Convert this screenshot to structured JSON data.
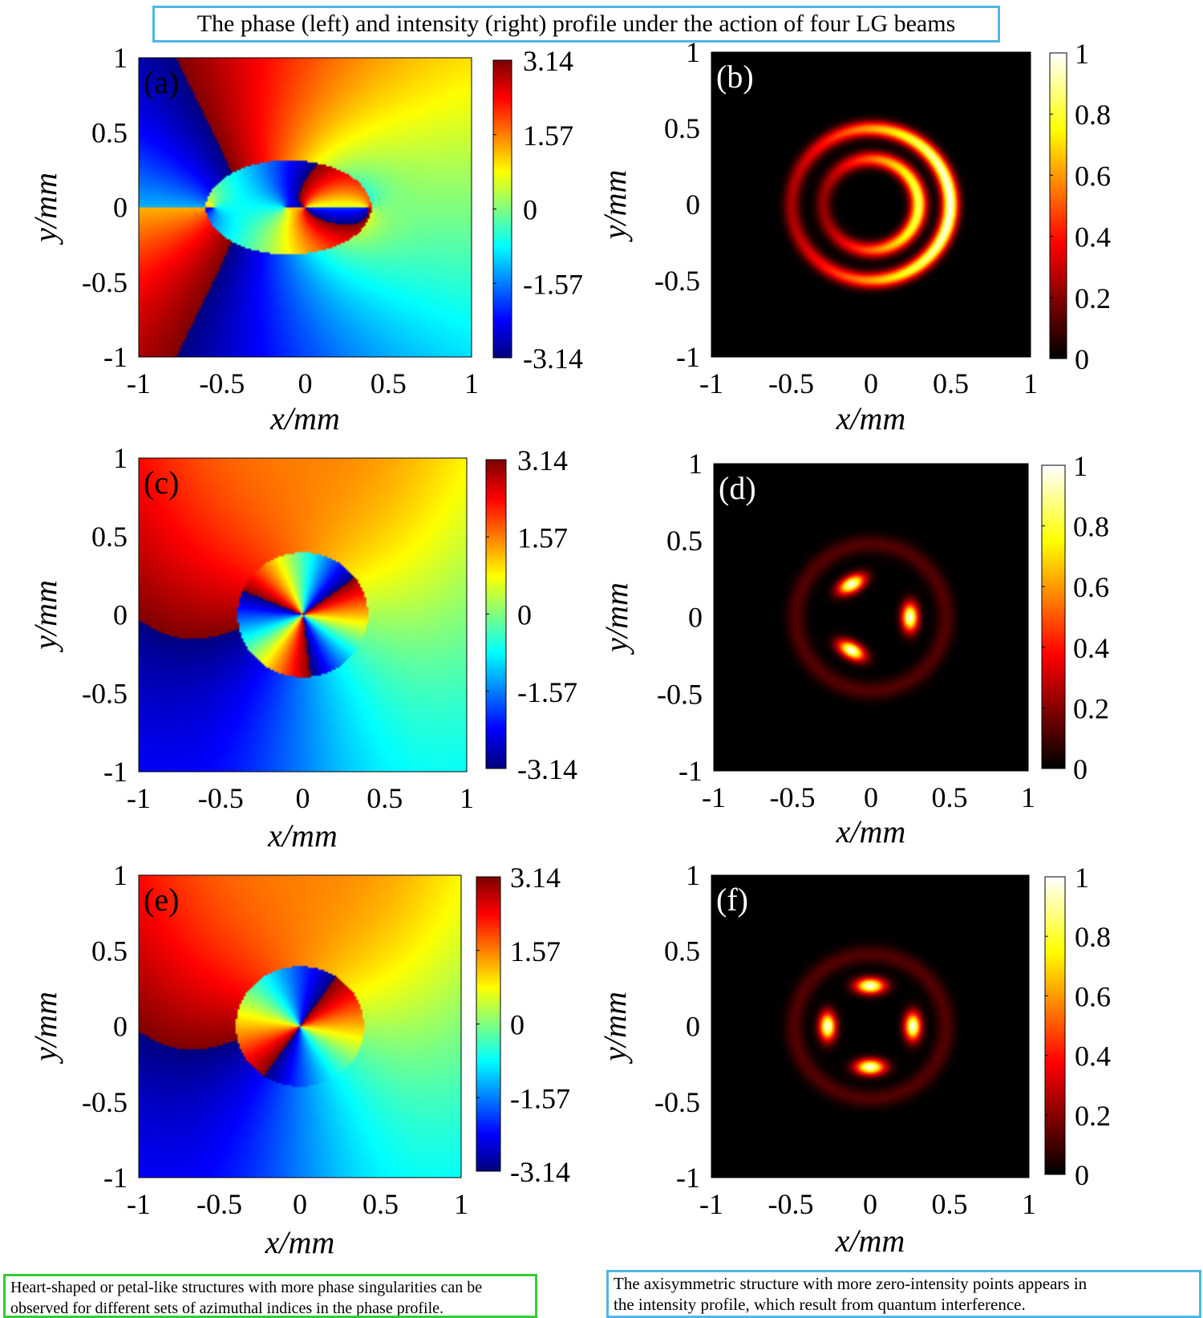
{
  "title": "The phase (left) and intensity (right) profile under the action of four LG beams",
  "notes": {
    "left": [
      "Heart-shaped or petal-like structures with more phase singularities can be",
      "observed for different sets of azimuthal indices in the phase profile."
    ],
    "right": [
      "The axisymmetric structure with more zero-intensity points appears in",
      "the intensity profile, which result from quantum interference."
    ]
  },
  "colors": {
    "title_border": "#4fb6e6",
    "left_note_border": "#33cc33",
    "right_note_border": "#4fb6e6",
    "phase_colormap": "jet",
    "intensity_colormap": "hot",
    "intensity_background": "#000000"
  },
  "chart_data": [
    {
      "panel": "(a)",
      "type": "heatmap",
      "quantity": "phase",
      "xlabel": "x/mm",
      "ylabel": "y/mm",
      "xlim": [
        -1,
        1
      ],
      "ylim": [
        -1,
        1
      ],
      "xticks": [
        "-1",
        "-0.5",
        "0",
        "0.5",
        "1"
      ],
      "yticks": [
        "1",
        "0.5",
        "0",
        "-0.5",
        "-1"
      ],
      "colorbar": {
        "range": [
          -3.14,
          3.14
        ],
        "ticks": [
          "3.14",
          "1.57",
          "0",
          "-1.57",
          "-3.14"
        ]
      },
      "structure": "heart-shaped phase structure with vortex at origin",
      "vortices": [
        {
          "x": -0.12,
          "y": 0.0,
          "charge": 1
        },
        {
          "x": -0.55,
          "y": 0.0,
          "charge": 1
        },
        {
          "x": 0.38,
          "y": 0.0,
          "charge": -1
        }
      ],
      "background_singularity": {
        "x": 0.0,
        "y": 0.0
      }
    },
    {
      "panel": "(b)",
      "type": "heatmap",
      "quantity": "intensity",
      "xlabel": "x/mm",
      "ylabel": "y/mm",
      "xlim": [
        -1,
        1
      ],
      "ylim": [
        -1,
        1
      ],
      "xticks": [
        "-1",
        "-0.5",
        "0",
        "0.5",
        "1"
      ],
      "yticks": [
        "1",
        "0.5",
        "0",
        "-0.5",
        "-1"
      ],
      "colorbar": {
        "range": [
          0,
          1
        ],
        "ticks": [
          "1",
          "0.8",
          "0.6",
          "0.4",
          "0.2",
          "0"
        ]
      },
      "structure": "nested crescent rings, brightest on the right",
      "rings": [
        {
          "radius": 0.3,
          "peak": 0.85
        },
        {
          "radius": 0.5,
          "peak": 1.0
        }
      ]
    },
    {
      "panel": "(c)",
      "type": "heatmap",
      "quantity": "phase",
      "xlabel": "x/mm",
      "ylabel": "y/mm",
      "xlim": [
        -1,
        1
      ],
      "ylim": [
        -1,
        1
      ],
      "xticks": [
        "-1",
        "-0.5",
        "0",
        "0.5",
        "1"
      ],
      "yticks": [
        "1",
        "0.5",
        "0",
        "-0.5",
        "-1"
      ],
      "colorbar": {
        "range": [
          -3.14,
          3.14
        ],
        "ticks": [
          "3.14",
          "1.57",
          "0",
          "-1.57",
          "-3.14"
        ]
      },
      "structure": "circular domain with three-fold phase singularity at origin",
      "inner_charge": 3,
      "inner_radius": 0.4
    },
    {
      "panel": "(d)",
      "type": "heatmap",
      "quantity": "intensity",
      "xlabel": "x/mm",
      "ylabel": "y/mm",
      "xlim": [
        -1,
        1
      ],
      "ylim": [
        -1,
        1
      ],
      "xticks": [
        "-1",
        "-0.5",
        "0",
        "0.5",
        "1"
      ],
      "yticks": [
        "1",
        "0.5",
        "0",
        "-0.5",
        "-1"
      ],
      "colorbar": {
        "range": [
          0,
          1
        ],
        "ticks": [
          "1",
          "0.8",
          "0.6",
          "0.4",
          "0.2",
          "0"
        ]
      },
      "structure": "three bright petals with faint outer ring",
      "petals": 3,
      "petal_radius": 0.25
    },
    {
      "panel": "(e)",
      "type": "heatmap",
      "quantity": "phase",
      "xlabel": "x/mm",
      "ylabel": "y/mm",
      "xlim": [
        -1,
        1
      ],
      "ylim": [
        -1,
        1
      ],
      "xticks": [
        "-1",
        "-0.5",
        "0",
        "0.5",
        "1"
      ],
      "yticks": [
        "1",
        "0.5",
        "0",
        "-0.5",
        "-1"
      ],
      "colorbar": {
        "range": [
          -3.14,
          3.14
        ],
        "ticks": [
          "3.14",
          "1.57",
          "0",
          "-1.57",
          "-3.14"
        ]
      },
      "structure": "four-lobed petal phase structure with singularity at origin",
      "inner_charge": 2,
      "inner_radius": 0.4
    },
    {
      "panel": "(f)",
      "type": "heatmap",
      "quantity": "intensity",
      "xlabel": "x/mm",
      "ylabel": "y/mm",
      "xlim": [
        -1,
        1
      ],
      "ylim": [
        -1,
        1
      ],
      "xticks": [
        "-1",
        "-0.5",
        "0",
        "0.5",
        "1"
      ],
      "yticks": [
        "1",
        "0.5",
        "0",
        "-0.5",
        "-1"
      ],
      "colorbar": {
        "range": [
          0,
          1
        ],
        "ticks": [
          "1",
          "0.8",
          "0.6",
          "0.4",
          "0.2",
          "0"
        ]
      },
      "structure": "four bright petals with faint outer ring",
      "petals": 4,
      "petal_radius": 0.27
    }
  ]
}
